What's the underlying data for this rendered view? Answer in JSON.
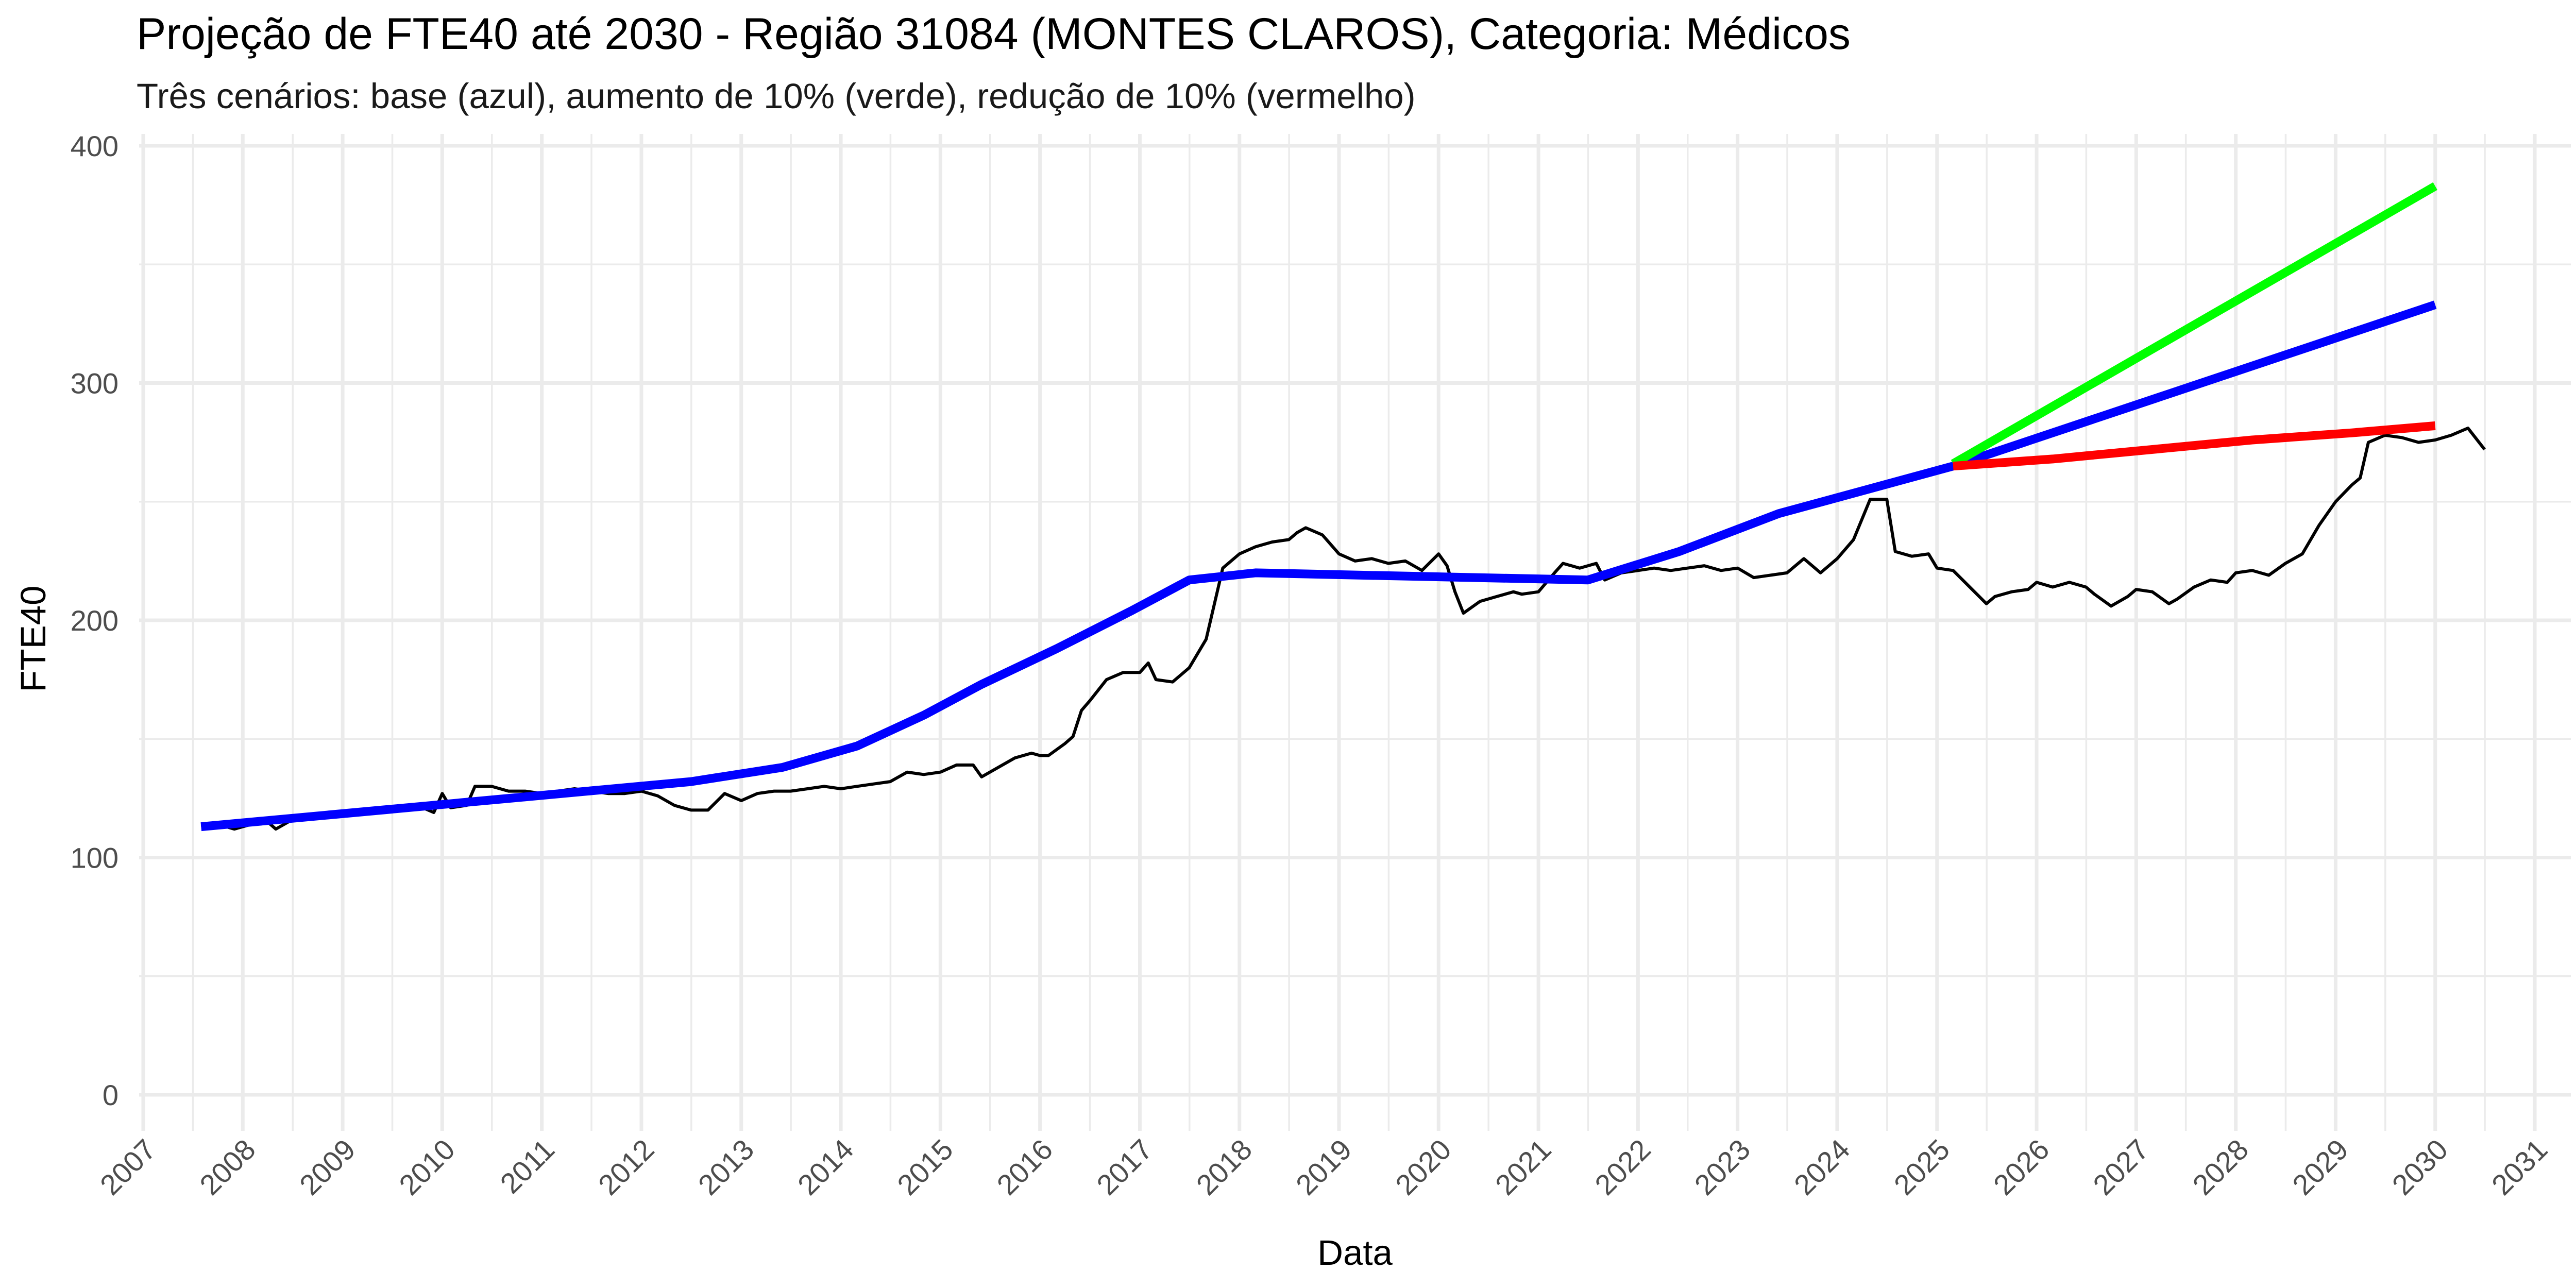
{
  "title": "Projeção de FTE40 até 2030 - Região 31084 (MONTES CLAROS), Categoria: Médicos",
  "subtitle": "Três cenários: base (azul), aumento de 10% (verde), redução de 10% (vermelho)",
  "chart_data": {
    "type": "line",
    "title": "Projeção de FTE40 até 2030 - Região 31084 (MONTES CLAROS), Categoria: Médicos",
    "subtitle": "Três cenários: base (azul), aumento de 10% (verde), redução de 10% (vermelho)",
    "xlabel": "Data",
    "ylabel": "FTE40",
    "xlim": [
      "2007-01-01",
      "2031-01-01"
    ],
    "ylim": [
      0,
      400
    ],
    "x_ticks": [
      "2007",
      "2008",
      "2009",
      "2010",
      "2011",
      "2012",
      "2013",
      "2014",
      "2015",
      "2016",
      "2017",
      "2018",
      "2019",
      "2020",
      "2021",
      "2022",
      "2023",
      "2024",
      "2025",
      "2026",
      "2027",
      "2028",
      "2029",
      "2030",
      "2031"
    ],
    "y_ticks": [
      0,
      100,
      200,
      300,
      400
    ],
    "grid": true,
    "legend": "none",
    "series": [
      {
        "color": "#000000",
        "style": "thin",
        "points": [
          [
            "2007-08-01",
            113
          ],
          [
            "2007-10-01",
            114
          ],
          [
            "2007-12-01",
            112
          ],
          [
            "2008-02-01",
            114
          ],
          [
            "2008-04-01",
            115
          ],
          [
            "2008-05-01",
            112
          ],
          [
            "2008-07-01",
            116
          ],
          [
            "2008-09-01",
            118
          ],
          [
            "2008-11-01",
            117
          ],
          [
            "2009-01-01",
            118
          ],
          [
            "2009-03-01",
            118
          ],
          [
            "2009-05-01",
            119
          ],
          [
            "2009-06-01",
            121
          ],
          [
            "2009-08-01",
            120
          ],
          [
            "2009-10-01",
            122
          ],
          [
            "2009-12-01",
            119
          ],
          [
            "2010-01-01",
            127
          ],
          [
            "2010-02-01",
            121
          ],
          [
            "2010-04-01",
            122
          ],
          [
            "2010-05-01",
            130
          ],
          [
            "2010-07-01",
            130
          ],
          [
            "2010-09-01",
            128
          ],
          [
            "2010-11-01",
            128
          ],
          [
            "2011-01-01",
            127
          ],
          [
            "2011-03-01",
            128
          ],
          [
            "2011-05-01",
            129
          ],
          [
            "2011-07-01",
            128
          ],
          [
            "2011-09-01",
            127
          ],
          [
            "2011-11-01",
            127
          ],
          [
            "2012-01-01",
            128
          ],
          [
            "2012-03-01",
            126
          ],
          [
            "2012-05-01",
            122
          ],
          [
            "2012-07-01",
            120
          ],
          [
            "2012-09-01",
            120
          ],
          [
            "2012-11-01",
            127
          ],
          [
            "2013-01-01",
            124
          ],
          [
            "2013-03-01",
            127
          ],
          [
            "2013-05-01",
            128
          ],
          [
            "2013-07-01",
            128
          ],
          [
            "2013-09-01",
            129
          ],
          [
            "2013-11-01",
            130
          ],
          [
            "2014-01-01",
            129
          ],
          [
            "2014-03-01",
            130
          ],
          [
            "2014-05-01",
            131
          ],
          [
            "2014-07-01",
            132
          ],
          [
            "2014-09-01",
            136
          ],
          [
            "2014-11-01",
            135
          ],
          [
            "2015-01-01",
            136
          ],
          [
            "2015-03-01",
            139
          ],
          [
            "2015-05-01",
            139
          ],
          [
            "2015-06-01",
            134
          ],
          [
            "2015-08-01",
            138
          ],
          [
            "2015-10-01",
            142
          ],
          [
            "2015-12-01",
            144
          ],
          [
            "2016-01-01",
            143
          ],
          [
            "2016-02-01",
            143
          ],
          [
            "2016-04-01",
            148
          ],
          [
            "2016-05-01",
            151
          ],
          [
            "2016-06-01",
            162
          ],
          [
            "2016-07-01",
            166
          ],
          [
            "2016-09-01",
            175
          ],
          [
            "2016-11-01",
            178
          ],
          [
            "2017-01-01",
            178
          ],
          [
            "2017-02-01",
            182
          ],
          [
            "2017-03-01",
            175
          ],
          [
            "2017-05-01",
            174
          ],
          [
            "2017-07-01",
            180
          ],
          [
            "2017-09-01",
            192
          ],
          [
            "2017-11-01",
            222
          ],
          [
            "2018-01-01",
            228
          ],
          [
            "2018-03-01",
            231
          ],
          [
            "2018-05-01",
            233
          ],
          [
            "2018-07-01",
            234
          ],
          [
            "2018-08-01",
            237
          ],
          [
            "2018-09-01",
            239
          ],
          [
            "2018-11-01",
            236
          ],
          [
            "2019-01-01",
            228
          ],
          [
            "2019-03-01",
            225
          ],
          [
            "2019-05-01",
            226
          ],
          [
            "2019-07-01",
            224
          ],
          [
            "2019-09-01",
            225
          ],
          [
            "2019-11-01",
            221
          ],
          [
            "2020-01-01",
            228
          ],
          [
            "2020-02-01",
            223
          ],
          [
            "2020-03-01",
            212
          ],
          [
            "2020-04-01",
            203
          ],
          [
            "2020-06-01",
            208
          ],
          [
            "2020-08-01",
            210
          ],
          [
            "2020-10-01",
            212
          ],
          [
            "2020-11-01",
            211
          ],
          [
            "2021-01-01",
            212
          ],
          [
            "2021-03-01",
            220
          ],
          [
            "2021-04-01",
            224
          ],
          [
            "2021-06-01",
            222
          ],
          [
            "2021-08-01",
            224
          ],
          [
            "2021-09-01",
            217
          ],
          [
            "2021-11-01",
            220
          ],
          [
            "2022-01-01",
            221
          ],
          [
            "2022-03-01",
            222
          ],
          [
            "2022-05-01",
            221
          ],
          [
            "2022-07-01",
            222
          ],
          [
            "2022-09-01",
            223
          ],
          [
            "2022-11-01",
            221
          ],
          [
            "2023-01-01",
            222
          ],
          [
            "2023-03-01",
            218
          ],
          [
            "2023-05-01",
            219
          ],
          [
            "2023-07-01",
            220
          ],
          [
            "2023-09-01",
            226
          ],
          [
            "2023-11-01",
            220
          ],
          [
            "2024-01-01",
            226
          ],
          [
            "2024-03-01",
            234
          ],
          [
            "2024-05-01",
            251
          ],
          [
            "2024-07-01",
            251
          ],
          [
            "2024-08-01",
            229
          ],
          [
            "2024-10-01",
            227
          ],
          [
            "2024-12-01",
            228
          ],
          [
            "2025-01-01",
            222
          ],
          [
            "2025-03-01",
            221
          ],
          [
            "2025-05-01",
            214
          ],
          [
            "2025-07-01",
            207
          ],
          [
            "2025-08-01",
            210
          ],
          [
            "2025-10-01",
            212
          ],
          [
            "2025-12-01",
            213
          ],
          [
            "2026-01-01",
            216
          ],
          [
            "2026-03-01",
            214
          ],
          [
            "2026-05-01",
            216
          ],
          [
            "2026-07-01",
            214
          ],
          [
            "2026-08-01",
            211
          ],
          [
            "2026-10-01",
            206
          ],
          [
            "2026-12-01",
            210
          ],
          [
            "2027-01-01",
            213
          ],
          [
            "2027-03-01",
            212
          ],
          [
            "2027-05-01",
            207
          ],
          [
            "2027-06-01",
            209
          ],
          [
            "2027-08-01",
            214
          ],
          [
            "2027-10-01",
            217
          ],
          [
            "2027-12-01",
            216
          ],
          [
            "2028-01-01",
            220
          ],
          [
            "2028-03-01",
            221
          ],
          [
            "2028-05-01",
            219
          ],
          [
            "2028-07-01",
            224
          ],
          [
            "2028-09-01",
            228
          ],
          [
            "2028-11-01",
            240
          ],
          [
            "2029-01-01",
            250
          ],
          [
            "2029-03-01",
            257
          ],
          [
            "2029-04-01",
            260
          ],
          [
            "2029-05-01",
            275
          ],
          [
            "2029-07-01",
            278
          ],
          [
            "2029-09-01",
            277
          ],
          [
            "2029-11-01",
            275
          ],
          [
            "2030-01-01",
            276
          ],
          [
            "2030-03-01",
            278
          ],
          [
            "2030-05-01",
            281
          ],
          [
            "2030-07-01",
            272
          ]
        ]
      },
      {
        "color": "#0000ff",
        "style": "thick",
        "points": [
          [
            "2007-08-01",
            113
          ],
          [
            "2012-07-01",
            132
          ],
          [
            "2013-06-01",
            138
          ],
          [
            "2014-03-01",
            147
          ],
          [
            "2014-11-01",
            160
          ],
          [
            "2015-06-01",
            173
          ],
          [
            "2016-03-01",
            188
          ],
          [
            "2016-12-01",
            204
          ],
          [
            "2017-07-01",
            217
          ],
          [
            "2018-03-01",
            220
          ],
          [
            "2019-04-01",
            219
          ],
          [
            "2021-07-01",
            217
          ],
          [
            "2022-06-01",
            229
          ],
          [
            "2023-06-01",
            245
          ],
          [
            "2025-03-01",
            265
          ],
          [
            "2030-01-01",
            333
          ]
        ]
      },
      {
        "color": "#00ff00",
        "style": "thick",
        "points": [
          [
            "2025-03-01",
            266
          ],
          [
            "2030-01-01",
            383
          ]
        ]
      },
      {
        "color": "#ff0000",
        "style": "thick",
        "points": [
          [
            "2025-03-01",
            265
          ],
          [
            "2026-03-01",
            268
          ],
          [
            "2027-03-01",
            272
          ],
          [
            "2028-03-01",
            276
          ],
          [
            "2029-03-01",
            279
          ],
          [
            "2030-01-01",
            282
          ]
        ]
      }
    ]
  }
}
